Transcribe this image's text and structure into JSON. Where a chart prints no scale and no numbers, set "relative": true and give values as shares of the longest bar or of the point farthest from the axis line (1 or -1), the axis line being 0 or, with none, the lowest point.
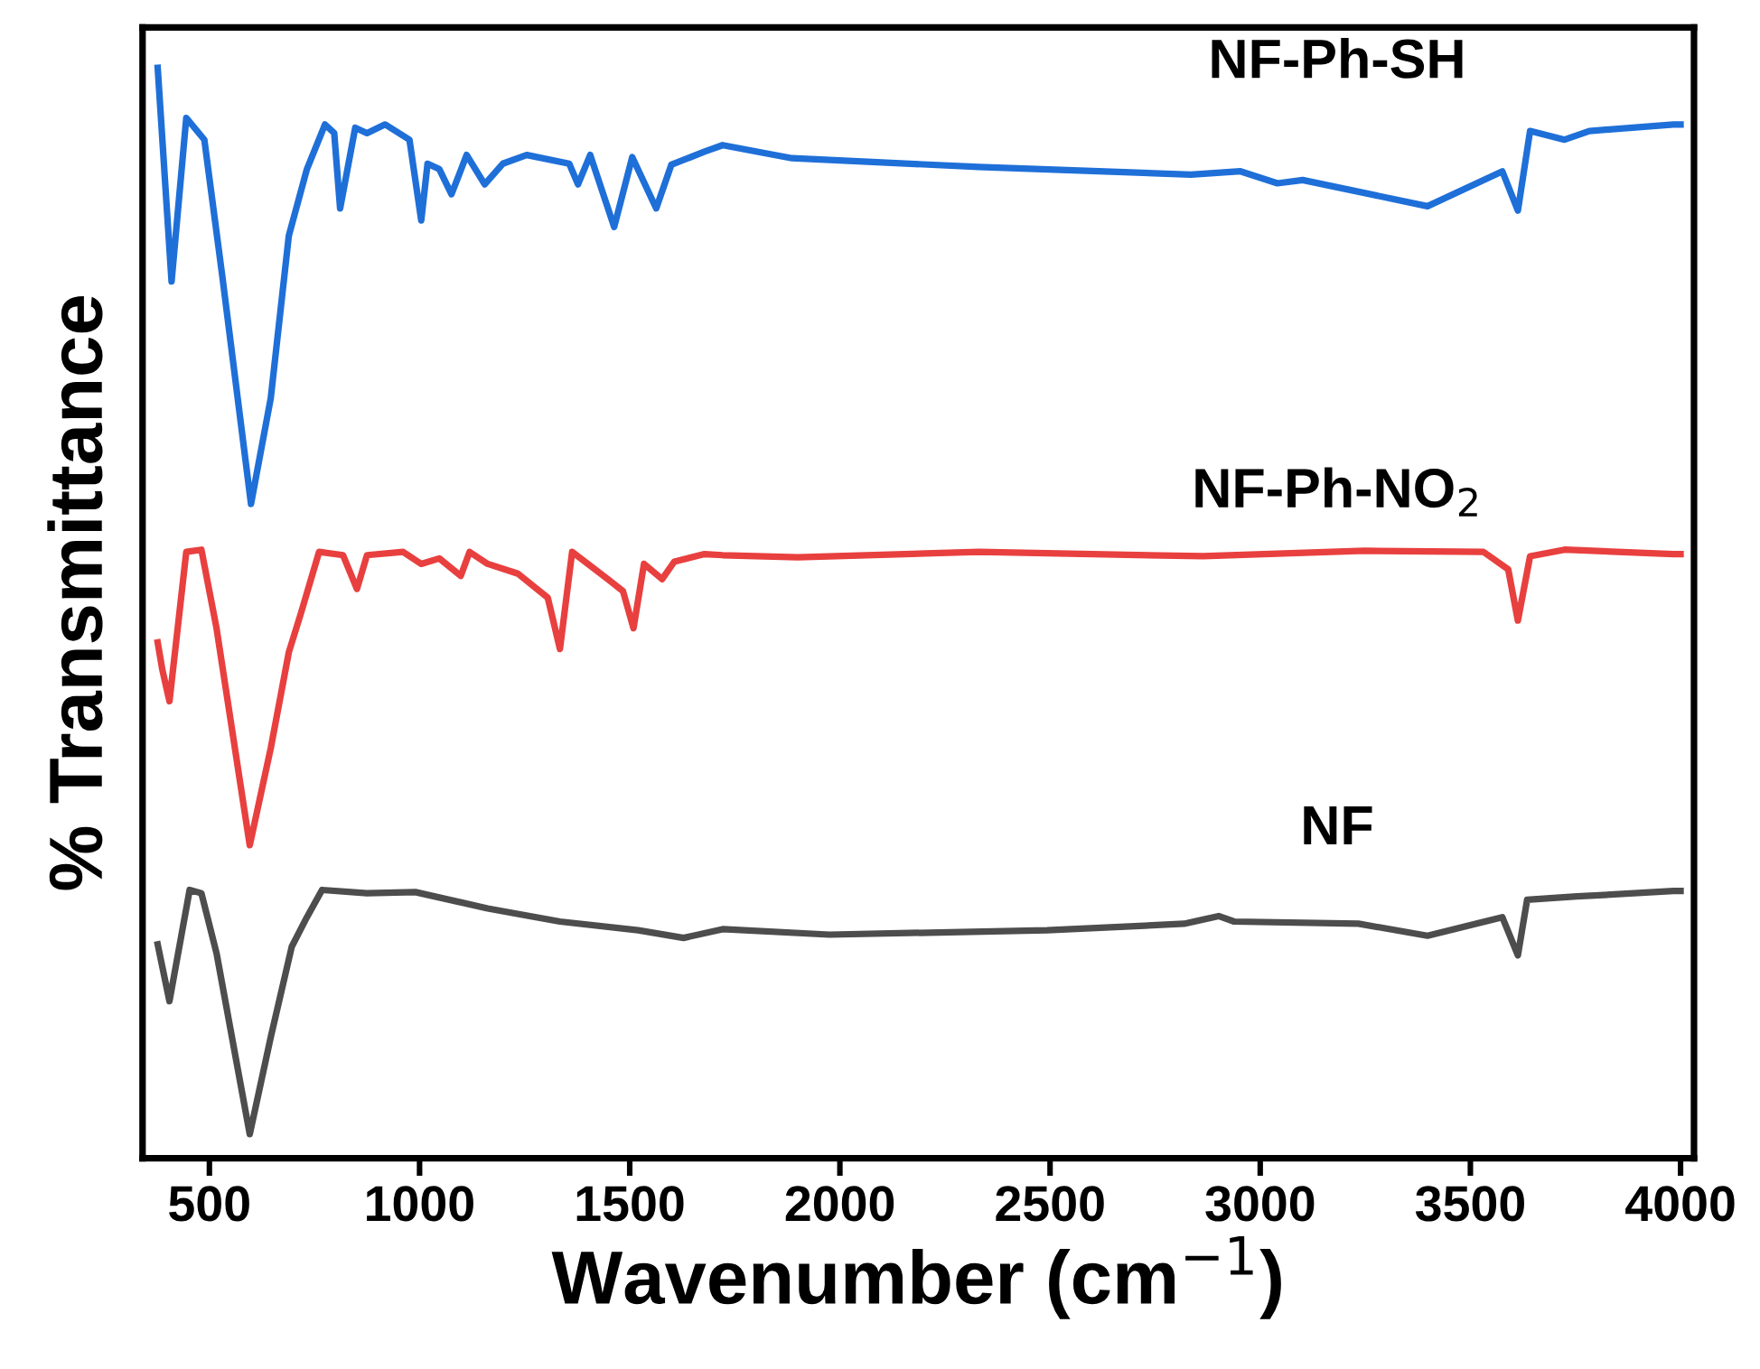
{
  "chart_data": {
    "type": "line",
    "relative": true,
    "xlabel": "Wavenumber (cm$^{−1}$)",
    "ylabel": "% Transmittance",
    "xlim": [
      341,
      4032
    ],
    "xticks": [
      500,
      1000,
      1500,
      2000,
      2500,
      3000,
      3500,
      4000
    ],
    "tick_labels": "x",
    "grid": false,
    "legend": false,
    "marker": "none",
    "line_style": "solid",
    "series": [
      {
        "name": "NF-Ph-SH",
        "color": "#1f6fd8",
        "x": [
          377,
          410,
          445,
          488,
          531,
          599,
          646,
          689,
          732,
          775,
          797,
          811,
          847,
          875,
          918,
          976,
          1004,
          1019,
          1047,
          1076,
          1112,
          1155,
          1198,
          1255,
          1356,
          1377,
          1406,
          1463,
          1506,
          1563,
          1599,
          1678,
          1721,
          1886,
          2330,
          2835,
          2953,
          3041,
          3101,
          3398,
          3576,
          3613,
          3642,
          3724,
          3783,
          3983,
          4000
        ],
        "values": [
          1.0,
          0.804,
          0.954,
          0.934,
          0.808,
          0.6,
          0.697,
          0.846,
          0.907,
          0.948,
          0.94,
          0.871,
          0.945,
          0.94,
          0.948,
          0.934,
          0.86,
          0.912,
          0.907,
          0.884,
          0.92,
          0.893,
          0.912,
          0.92,
          0.912,
          0.893,
          0.92,
          0.854,
          0.918,
          0.871,
          0.911,
          0.923,
          0.929,
          0.917,
          0.909,
          0.902,
          0.905,
          0.894,
          0.897,
          0.873,
          0.905,
          0.869,
          0.942,
          0.934,
          0.942,
          0.948,
          0.948
        ]
      },
      {
        "name": "NF-Ph-NO$_{2}$",
        "color": "#e8403f",
        "x": [
          377,
          388,
          405,
          445,
          481,
          517,
          596,
          646,
          689,
          718,
          761,
          818,
          851,
          875,
          961,
          1004,
          1047,
          1098,
          1119,
          1162,
          1234,
          1305,
          1334,
          1363,
          1448,
          1484,
          1509,
          1534,
          1577,
          1606,
          1678,
          1721,
          1900,
          2330,
          2864,
          3249,
          3531,
          3590,
          3613,
          3642,
          3724,
          3983,
          4000
        ],
        "values": [
          0.473,
          0.448,
          0.419,
          0.556,
          0.558,
          0.486,
          0.287,
          0.376,
          0.464,
          0.5,
          0.556,
          0.553,
          0.522,
          0.553,
          0.556,
          0.545,
          0.55,
          0.534,
          0.556,
          0.545,
          0.536,
          0.514,
          0.467,
          0.556,
          0.531,
          0.52,
          0.486,
          0.545,
          0.531,
          0.547,
          0.554,
          0.553,
          0.551,
          0.556,
          0.552,
          0.557,
          0.556,
          0.54,
          0.493,
          0.552,
          0.558,
          0.554,
          0.554
        ]
      },
      {
        "name": "NF",
        "color": "#4d4d4d",
        "x": [
          377,
          405,
          453,
          481,
          517,
          596,
          646,
          696,
          732,
          768,
          875,
          990,
          1162,
          1334,
          1520,
          1628,
          1721,
          1975,
          2493,
          2819,
          2901,
          2938,
          3234,
          3398,
          3576,
          3613,
          3635,
          3753,
          3983,
          4000
        ],
        "values": [
          0.196,
          0.144,
          0.246,
          0.243,
          0.188,
          0.022,
          0.111,
          0.194,
          0.221,
          0.246,
          0.243,
          0.244,
          0.229,
          0.217,
          0.209,
          0.202,
          0.21,
          0.205,
          0.209,
          0.215,
          0.222,
          0.217,
          0.215,
          0.204,
          0.221,
          0.186,
          0.237,
          0.24,
          0.245,
          0.245
        ]
      }
    ]
  }
}
